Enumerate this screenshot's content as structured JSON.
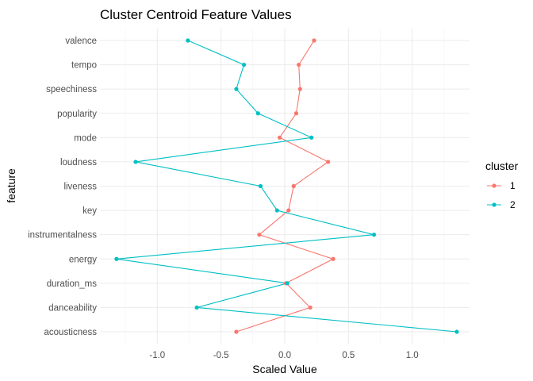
{
  "chart_data": {
    "type": "line",
    "title": "Cluster Centroid Feature Values",
    "xlabel": "Scaled Value",
    "ylabel": "feature",
    "xlim": [
      -1.45,
      1.45
    ],
    "x_ticks": [
      -1.0,
      -0.5,
      0.0,
      0.5,
      1.0
    ],
    "x_tick_labels": [
      "-1.0",
      "-0.5",
      "0.0",
      "0.5",
      "1.0"
    ],
    "categories": [
      "acousticness",
      "danceability",
      "duration_ms",
      "energy",
      "instrumentalness",
      "key",
      "liveness",
      "loudness",
      "mode",
      "popularity",
      "speechiness",
      "tempo",
      "valence"
    ],
    "legend_title": "cluster",
    "legend_position": "right",
    "grid": true,
    "series": [
      {
        "name": "1",
        "color": "#F8766D",
        "values": [
          -0.38,
          0.2,
          0.01,
          0.38,
          -0.2,
          0.03,
          0.07,
          0.34,
          -0.04,
          0.09,
          0.12,
          0.11,
          0.23
        ]
      },
      {
        "name": "2",
        "color": "#00BFC4",
        "values": [
          1.35,
          -0.69,
          0.02,
          -1.32,
          0.7,
          -0.06,
          -0.19,
          -1.17,
          0.21,
          -0.21,
          -0.38,
          -0.32,
          -0.76
        ]
      }
    ]
  }
}
